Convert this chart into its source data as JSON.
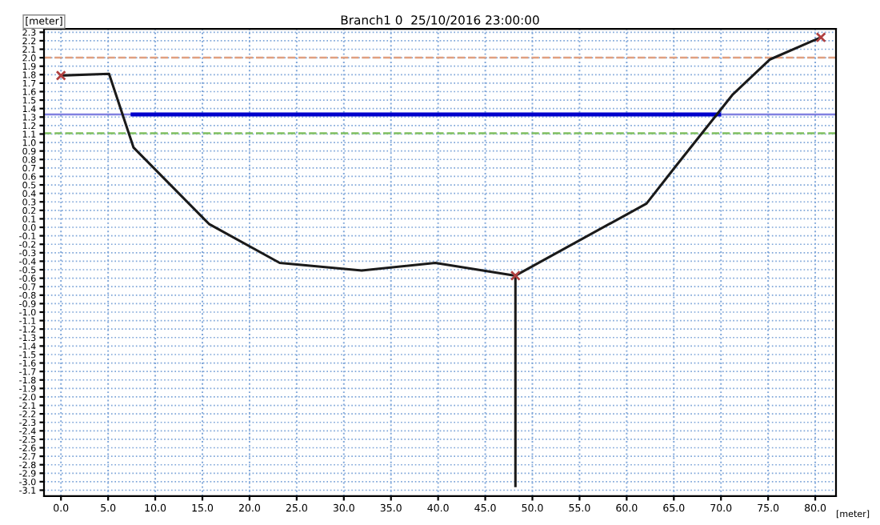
{
  "chart_data": {
    "type": "line",
    "title": "Branch1 0  25/10/2016 23:00:00",
    "xlabel": "[meter]",
    "ylabel": "[meter]",
    "xlim": [
      -1.8,
      82.2
    ],
    "ylim": [
      -3.17,
      2.34
    ],
    "xticks": [
      {
        "value": 0,
        "label": "0.0"
      },
      {
        "value": 5,
        "label": "5.0"
      },
      {
        "value": 10,
        "label": "10.0"
      },
      {
        "value": 15,
        "label": "15.0"
      },
      {
        "value": 20,
        "label": "20.0"
      },
      {
        "value": 25,
        "label": "25.0"
      },
      {
        "value": 30,
        "label": "30.0"
      },
      {
        "value": 35,
        "label": "35.0"
      },
      {
        "value": 40,
        "label": "40.0"
      },
      {
        "value": 45,
        "label": "45.0"
      },
      {
        "value": 50,
        "label": "50.0"
      },
      {
        "value": 55,
        "label": "55.0"
      },
      {
        "value": 60,
        "label": "60.0"
      },
      {
        "value": 65,
        "label": "65.0"
      },
      {
        "value": 70,
        "label": "70.0"
      },
      {
        "value": 75,
        "label": "75.0"
      },
      {
        "value": 80,
        "label": "80.0"
      }
    ],
    "yticks": [
      2.3,
      2.2,
      2.1,
      {
        "value": 2,
        "label": "2.0"
      },
      1.9,
      1.8,
      1.7,
      1.6,
      1.5,
      1.4,
      1.3,
      1.2,
      1.1,
      {
        "value": 1,
        "label": "1.0"
      },
      0.9,
      0.8,
      0.7,
      0.6,
      0.5,
      0.4,
      0.3,
      0.2,
      0.1,
      {
        "value": 0,
        "label": "0.0"
      },
      -0.1,
      -0.2,
      -0.3,
      -0.4,
      -0.5,
      -0.6,
      -0.7,
      -0.8,
      -0.9,
      {
        "value": -1,
        "label": "-1.0"
      },
      -1.1,
      -1.2,
      -1.3,
      -1.4,
      -1.5,
      -1.6,
      -1.7,
      -1.8,
      -1.9,
      {
        "value": -2,
        "label": "-2.0"
      },
      -2.1,
      -2.2,
      -2.3,
      -2.4,
      -2.5,
      -2.6,
      -2.7,
      -2.8,
      -2.9,
      {
        "value": -3,
        "label": "-3.0"
      },
      -3.1
    ],
    "grid": true,
    "line_style": "solid",
    "series": [
      {
        "color": "#0000cc",
        "x": [
          7.6,
          69.8
        ],
        "values": [
          1.33,
          1.33
        ]
      },
      {
        "color": "#1a1a1a",
        "x": [
          0,
          5.1,
          7.7,
          15.7,
          23.2,
          31.9,
          39.7,
          48.2,
          62.1,
          65.2,
          71.2,
          75.2,
          80.6
        ],
        "values": [
          1.79,
          1.81,
          0.94,
          0.04,
          -0.42,
          -0.51,
          -0.42,
          -0.57,
          0.28,
          0.72,
          1.56,
          1.98,
          2.24
        ]
      },
      {
        "color": "#1a1a1a",
        "x": [
          48.2,
          48.2
        ],
        "values": [
          -0.57,
          -3.05
        ]
      },
      {
        "type": "scatter",
        "marker": "cross",
        "color": "#b04040",
        "x": [
          0,
          48.2,
          80.6
        ],
        "values": [
          1.79,
          -0.57,
          2.24
        ]
      }
    ],
    "ref_lines": [
      {
        "axis": "y",
        "value": 2.0,
        "color": "#e0a080",
        "line_style": "dashed"
      },
      {
        "axis": "y",
        "value": 1.33,
        "color": "#8080e0",
        "line_style": "solid"
      },
      {
        "axis": "y",
        "value": 1.11,
        "color": "#80c060",
        "line_style": "dashed"
      }
    ]
  }
}
